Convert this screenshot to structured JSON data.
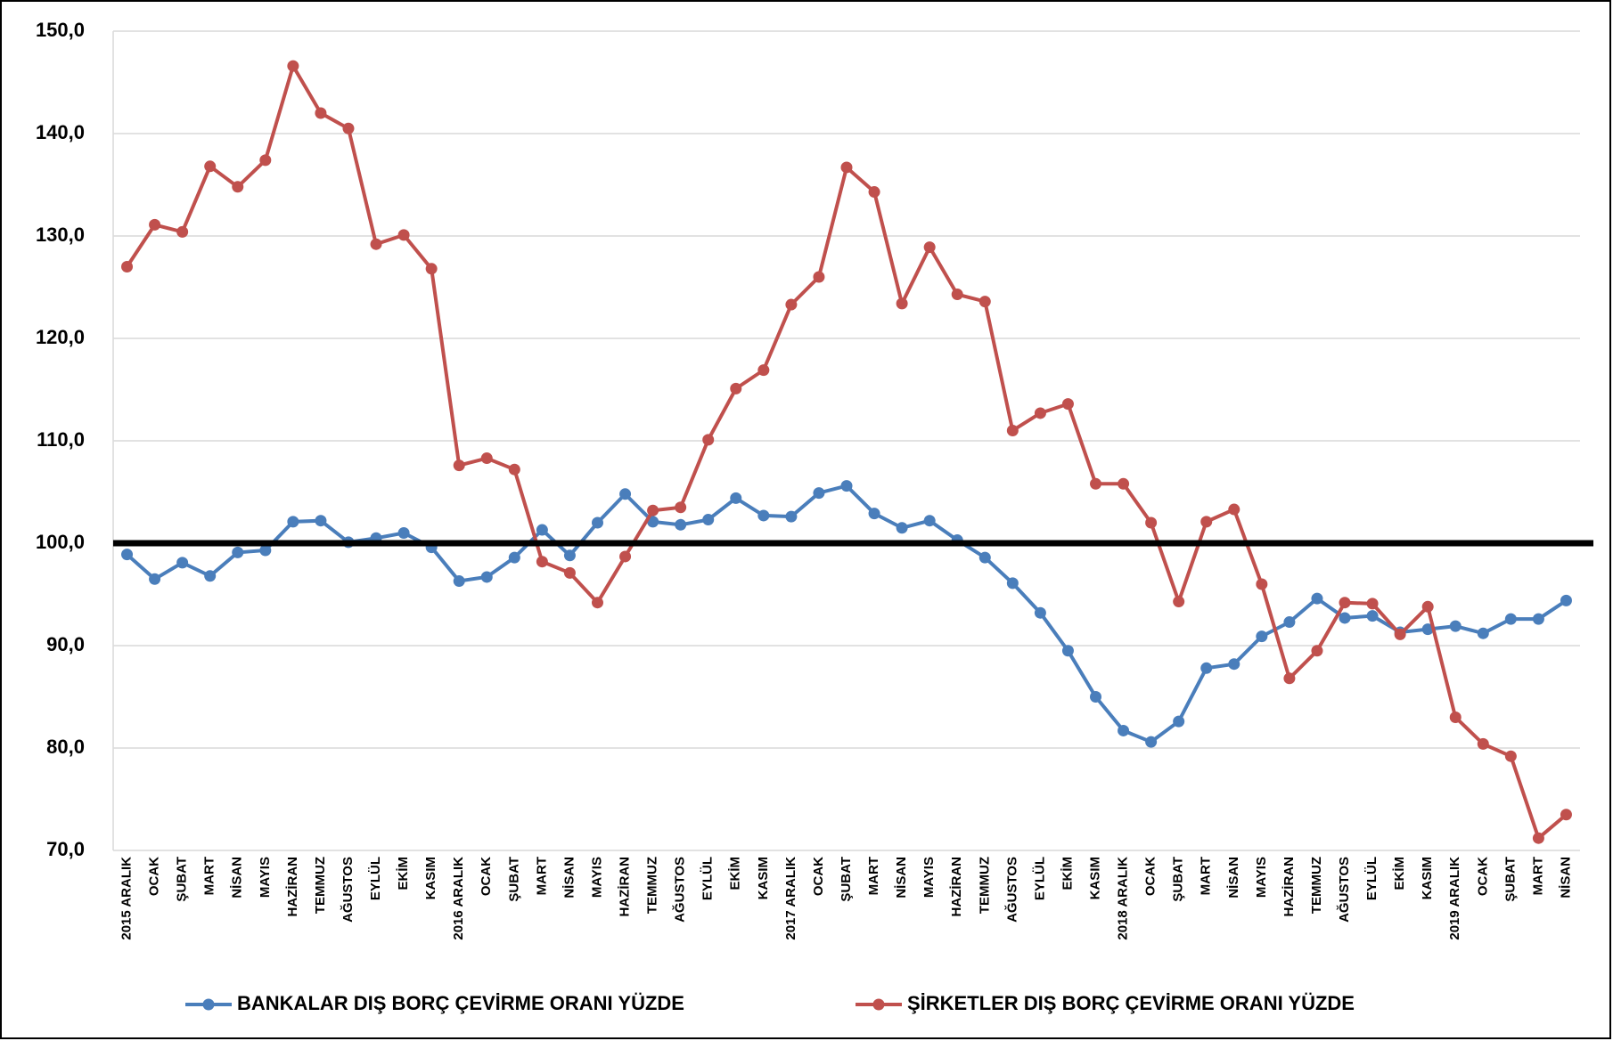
{
  "chart_data": {
    "type": "line",
    "categories": [
      "2015 ARALIK",
      "OCAK",
      "ŞUBAT",
      "MART",
      "NİSAN",
      "MAYIS",
      "HAZİRAN",
      "TEMMUZ",
      "AĞUSTOS",
      "EYLÜL",
      "EKİM",
      "KASIM",
      "2016 ARALIK",
      "OCAK",
      "ŞUBAT",
      "MART",
      "NİSAN",
      "MAYIS",
      "HAZİRAN",
      "TEMMUZ",
      "AĞUSTOS",
      "EYLÜL",
      "EKİM",
      "KASIM",
      "2017 ARALIK",
      "OCAK",
      "ŞUBAT",
      "MART",
      "NİSAN",
      "MAYIS",
      "HAZİRAN",
      "TEMMUZ",
      "AĞUSTOS",
      "EYLÜL",
      "EKİM",
      "KASIM",
      "2018 ARALIK",
      "OCAK",
      "ŞUBAT",
      "MART",
      "NİSAN",
      "MAYIS",
      "HAZİRAN",
      "TEMMUZ",
      "AĞUSTOS",
      "EYLÜL",
      "EKİM",
      "KASIM",
      "2019 ARALIK",
      "OCAK",
      "ŞUBAT",
      "MART",
      "NİSAN"
    ],
    "series": [
      {
        "name": "BANKALAR DIŞ BORÇ ÇEVİRME ORANI YÜZDE",
        "color": "#4a7ebb",
        "values": [
          98.9,
          96.5,
          98.1,
          96.8,
          99.1,
          99.3,
          102.1,
          102.2,
          100.1,
          100.5,
          101.0,
          99.6,
          96.3,
          96.7,
          98.6,
          101.3,
          98.8,
          102.0,
          104.8,
          102.1,
          101.8,
          102.3,
          104.4,
          102.7,
          102.6,
          104.9,
          105.6,
          102.9,
          101.5,
          102.2,
          100.3,
          98.6,
          96.1,
          93.2,
          89.5,
          85.0,
          81.7,
          80.6,
          82.6,
          87.8,
          88.2,
          90.9,
          92.3,
          94.6,
          92.7,
          92.9,
          91.3,
          91.6,
          91.9,
          91.2,
          92.6,
          92.6,
          94.4
        ]
      },
      {
        "name": "ŞİRKETLER DIŞ BORÇ ÇEVİRME ORANI YÜZDE",
        "color": "#c0504d",
        "values": [
          127.0,
          131.1,
          130.4,
          136.8,
          134.8,
          137.4,
          146.6,
          142.0,
          140.5,
          129.2,
          130.1,
          126.8,
          107.6,
          108.3,
          107.2,
          98.2,
          97.1,
          94.2,
          98.7,
          103.2,
          103.5,
          110.1,
          115.1,
          116.9,
          123.3,
          126.0,
          136.7,
          134.3,
          123.4,
          128.9,
          124.3,
          123.6,
          111.0,
          112.7,
          113.6,
          105.8,
          105.8,
          102.0,
          94.3,
          102.1,
          103.3,
          96.0,
          86.8,
          89.5,
          94.2,
          94.1,
          91.1,
          93.8,
          83.0,
          80.4,
          79.2,
          71.2,
          73.5
        ]
      }
    ],
    "reference_line": 100,
    "ylim": [
      70,
      150
    ],
    "yticks": [
      {
        "value": 70,
        "label": "70,0"
      },
      {
        "value": 80,
        "label": "80,0"
      },
      {
        "value": 90,
        "label": "90,0"
      },
      {
        "value": 100,
        "label": "100,0"
      },
      {
        "value": 110,
        "label": "110,0"
      },
      {
        "value": 120,
        "label": "120,0"
      },
      {
        "value": 130,
        "label": "130,0"
      },
      {
        "value": 140,
        "label": "140,0"
      },
      {
        "value": 150,
        "label": "150,0"
      }
    ],
    "grid": true,
    "legend": "bottom"
  }
}
